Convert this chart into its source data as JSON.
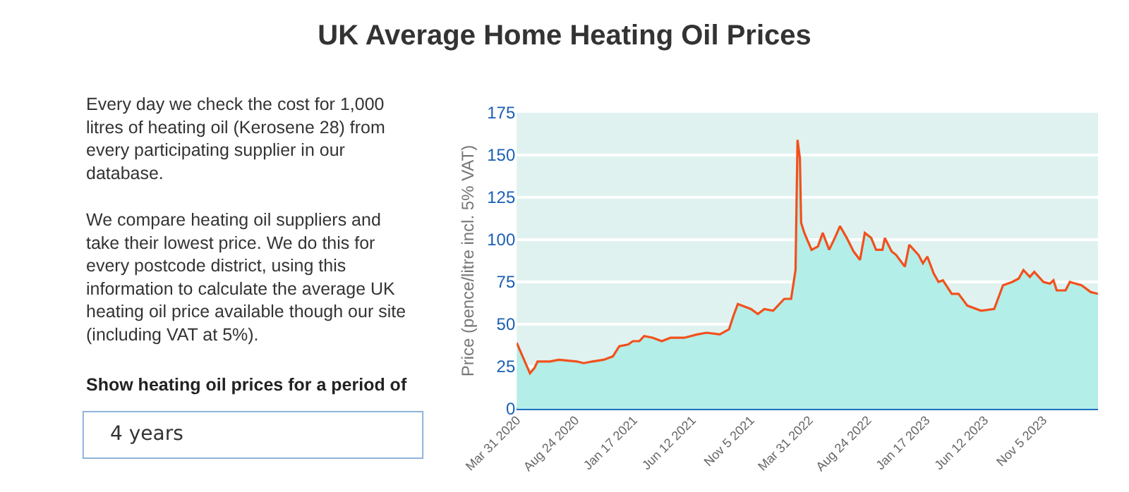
{
  "chart_data": {
    "type": "area",
    "title": "UK Average Home Heating Oil Prices",
    "ylabel": "Price (pence/litre incl. 5% VAT)",
    "annotations": [
      "Every day we check the cost for 1,000\nlitres of heating oil (Kerosene 28) from\nevery participating supplier in our\ndatabase.",
      "We compare heating oil suppliers and\ntake their lowest price. We do this for\nevery postcode district, using this\ninformation to calculate the average UK\nheating oil price available though our site\n(including VAT at 5%).",
      "Show heating oil prices for a period of",
      "4 years"
    ],
    "x": [
      "2020-03-31",
      "2020-04-11",
      "2020-05-03",
      "2020-05-14",
      "2020-05-22",
      "2020-06-22",
      "2020-07-14",
      "2020-08-28",
      "2020-09-14",
      "2020-10-06",
      "2020-11-03",
      "2020-11-26",
      "2020-12-12",
      "2021-01-03",
      "2021-01-15",
      "2021-01-31",
      "2021-02-12",
      "2021-03-06",
      "2021-03-28",
      "2021-04-19",
      "2021-05-23",
      "2021-06-25",
      "2021-07-18",
      "2021-08-20",
      "2021-09-12",
      "2021-09-23",
      "2021-10-04",
      "2021-11-06",
      "2021-11-23",
      "2021-12-09",
      "2021-12-31",
      "2022-01-28",
      "2022-02-14",
      "2022-02-25",
      "2022-03-02",
      "2022-03-08",
      "2022-03-11",
      "2022-03-19",
      "2022-04-06",
      "2022-04-22",
      "2022-05-04",
      "2022-05-20",
      "2022-06-05",
      "2022-06-16",
      "2022-07-03",
      "2022-07-20",
      "2022-08-05",
      "2022-08-17",
      "2022-09-02",
      "2022-09-14",
      "2022-09-30",
      "2022-10-06",
      "2022-10-23",
      "2022-11-03",
      "2022-11-25",
      "2022-12-06",
      "2022-12-29",
      "2023-01-09",
      "2023-01-20",
      "2023-02-05",
      "2023-02-17",
      "2023-02-28",
      "2023-03-22",
      "2023-04-08",
      "2023-04-30",
      "2023-06-03",
      "2023-07-06",
      "2023-07-28",
      "2023-08-20",
      "2023-09-05",
      "2023-09-17",
      "2023-10-03",
      "2023-10-14",
      "2023-11-06",
      "2023-11-22",
      "2023-12-01",
      "2023-12-09",
      "2023-12-31",
      "2024-01-11",
      "2024-02-09",
      "2024-03-03",
      "2024-03-21"
    ],
    "series": [
      {
        "color": "#b3eee8",
        "values": [
          39,
          33,
          21,
          24,
          28,
          28,
          29,
          28,
          27,
          28,
          29,
          31,
          37,
          38,
          40,
          40,
          43,
          42,
          40,
          42,
          42,
          44,
          45,
          44,
          47,
          55,
          62,
          59,
          56,
          59,
          58,
          65,
          65,
          82,
          159,
          148,
          110,
          104,
          94,
          96,
          104,
          94,
          102,
          108,
          101,
          93,
          88,
          104,
          101,
          94,
          94,
          101,
          93,
          91,
          84,
          97,
          91,
          86,
          90,
          80,
          75,
          76,
          68,
          68,
          61,
          58,
          59,
          73,
          75,
          77,
          82,
          78,
          81,
          75,
          74,
          76,
          70,
          70,
          75,
          73,
          69,
          68
        ]
      },
      {
        "type": "line",
        "color": "#f2501c",
        "values": [
          39,
          33,
          21,
          24,
          28,
          28,
          29,
          28,
          27,
          28,
          29,
          31,
          37,
          38,
          40,
          40,
          43,
          42,
          40,
          42,
          42,
          44,
          45,
          44,
          47,
          55,
          62,
          59,
          56,
          59,
          58,
          65,
          65,
          82,
          159,
          148,
          110,
          104,
          94,
          96,
          104,
          94,
          102,
          108,
          101,
          93,
          88,
          104,
          101,
          94,
          94,
          101,
          93,
          91,
          84,
          97,
          91,
          86,
          90,
          80,
          75,
          76,
          68,
          68,
          61,
          58,
          59,
          73,
          75,
          77,
          82,
          78,
          81,
          75,
          74,
          76,
          70,
          70,
          75,
          73,
          69,
          68
        ]
      }
    ],
    "xlim": [
      "2020-03-31",
      "2024-03-21"
    ],
    "xticks": [
      {
        "value": "2020-03-31",
        "label": "Mar 31 2020"
      },
      {
        "value": "2020-08-24",
        "label": "Aug 24 2020"
      },
      {
        "value": "2021-01-17",
        "label": "Jan 17 2021"
      },
      {
        "value": "2021-06-12",
        "label": "Jun 12 2021"
      },
      {
        "value": "2021-11-05",
        "label": "Nov 5 2021"
      },
      {
        "value": "2022-03-31",
        "label": "Mar 31 2022"
      },
      {
        "value": "2022-08-24",
        "label": "Aug 24 2022"
      },
      {
        "value": "2023-01-17",
        "label": "Jan 17 2023"
      },
      {
        "value": "2023-06-12",
        "label": "Jun 12 2023"
      },
      {
        "value": "2023-11-05",
        "label": "Nov 5 2023"
      }
    ],
    "ylim": [
      0,
      175
    ],
    "yticks": [
      0,
      25,
      50,
      75,
      100,
      125,
      150,
      175
    ],
    "grid": "y"
  }
}
